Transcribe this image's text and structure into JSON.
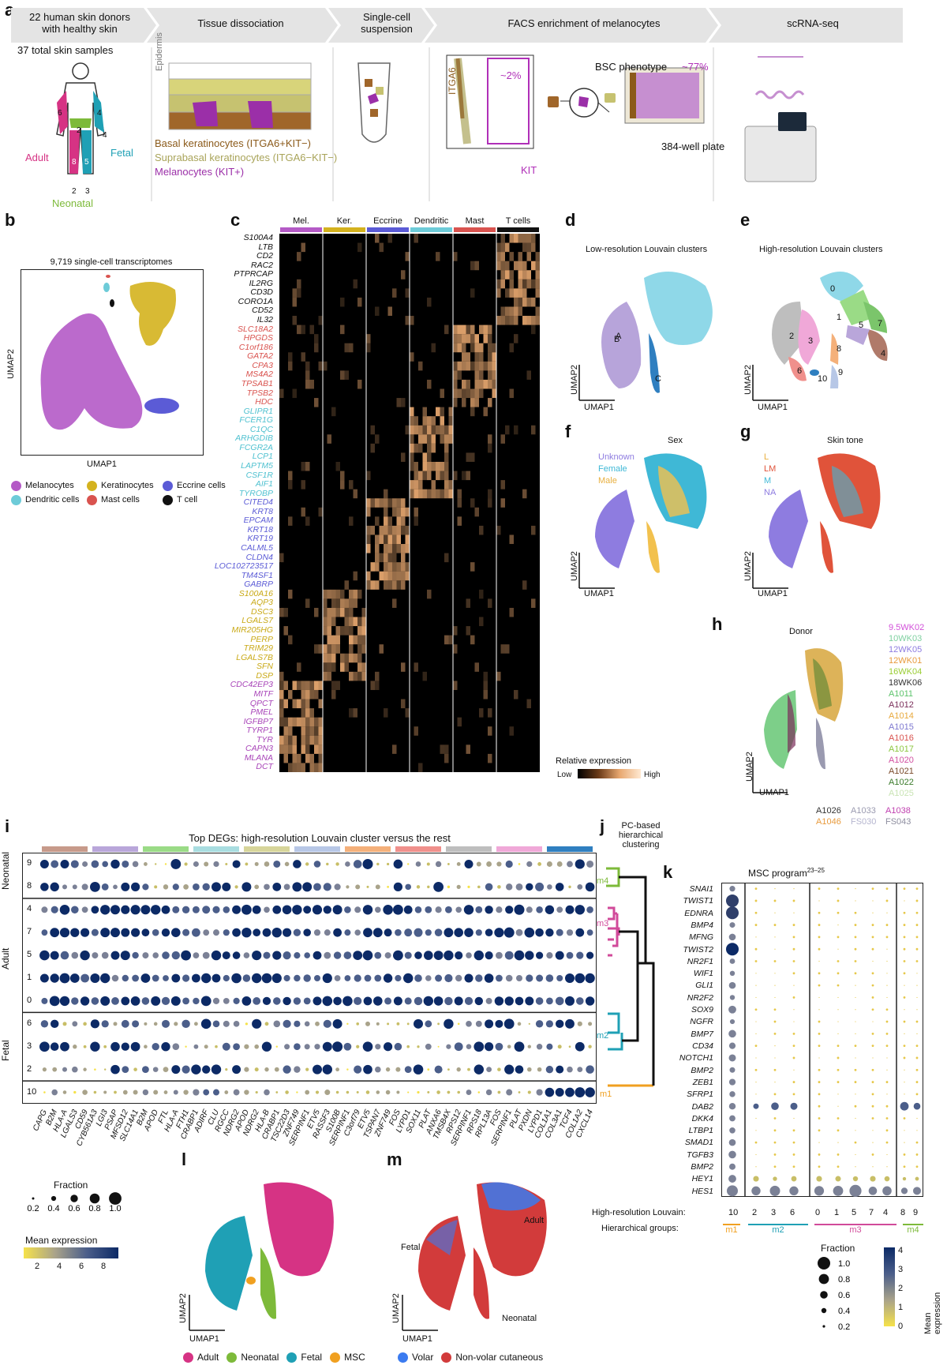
{
  "panels": {
    "a": {
      "label": "a",
      "steps": [
        {
          "title": "22 human skin donors\nwith healthy skin"
        },
        {
          "title": "Tissue dissociation"
        },
        {
          "title": "Single-cell\nsuspension"
        },
        {
          "title": "FACS enrichment of melanocytes"
        },
        {
          "title": "scRNA-seq"
        }
      ],
      "total_samples": "37 total skin samples",
      "body_labels": {
        "adult": "Adult",
        "fetal": "Fetal",
        "neonatal": "Neonatal"
      },
      "body_numbers": [
        "6",
        "4",
        "2",
        "4",
        "8",
        "5",
        "2",
        "3"
      ],
      "epidermis": "Epidermis",
      "cell_types": [
        {
          "label": "Basal keratinocytes (ITGA6+KIT−)",
          "color": "#8B5A1A"
        },
        {
          "label": "Suprabasal keratinocytes (ITGA6−KIT−)",
          "color": "#B5B070"
        },
        {
          "label": "Melanocytes (KIT+)",
          "color": "#9B2FA8"
        }
      ],
      "facs": {
        "ylabel": "ITGA6",
        "xlabel": "KIT",
        "pct_gate": "~2%",
        "bsc": "BSC phenotype",
        "pct_plate": "~77%",
        "plate": "384-well plate"
      }
    },
    "b": {
      "label": "b",
      "title": "9,719  single-cell transcriptomes",
      "xlabel": "UMAP1",
      "ylabel": "UMAP2",
      "legend": [
        {
          "label": "Melanocytes",
          "color": "#B45AC6"
        },
        {
          "label": "Keratinocytes",
          "color": "#D4B21E"
        },
        {
          "label": "Eccrine cells",
          "color": "#5B5BD6"
        },
        {
          "label": "Dendritic cells",
          "color": "#6DCBD8"
        },
        {
          "label": "Mast cells",
          "color": "#D9534F"
        },
        {
          "label": "T cell",
          "color": "#111111"
        }
      ]
    },
    "c": {
      "label": "c",
      "groups": [
        {
          "label": "Mel.",
          "color": "#B45AC6"
        },
        {
          "label": "Ker.",
          "color": "#D4B21E"
        },
        {
          "label": "Eccrine",
          "color": "#5B5BD6"
        },
        {
          "label": "Dendritic",
          "color": "#6DCBD8"
        },
        {
          "label": "Mast",
          "color": "#D9534F"
        },
        {
          "label": "T cells",
          "color": "#111111"
        }
      ],
      "genes": [
        {
          "name": "S100A4",
          "color": "#111111"
        },
        {
          "name": "LTB",
          "color": "#111111"
        },
        {
          "name": "CD2",
          "color": "#111111"
        },
        {
          "name": "RAC2",
          "color": "#111111"
        },
        {
          "name": "PTPRCAP",
          "color": "#111111"
        },
        {
          "name": "IL2RG",
          "color": "#111111"
        },
        {
          "name": "CD3D",
          "color": "#111111"
        },
        {
          "name": "CORO1A",
          "color": "#111111"
        },
        {
          "name": "CD52",
          "color": "#111111"
        },
        {
          "name": "IL32",
          "color": "#111111"
        },
        {
          "name": "SLC18A2",
          "color": "#D9534F"
        },
        {
          "name": "HPGDS",
          "color": "#D9534F"
        },
        {
          "name": "C1orf186",
          "color": "#D9534F"
        },
        {
          "name": "GATA2",
          "color": "#D9534F"
        },
        {
          "name": "CPA3",
          "color": "#D9534F"
        },
        {
          "name": "MS4A2",
          "color": "#D9534F"
        },
        {
          "name": "TPSAB1",
          "color": "#D9534F"
        },
        {
          "name": "TPSB2",
          "color": "#D9534F"
        },
        {
          "name": "HDC",
          "color": "#D9534F"
        },
        {
          "name": "GLIPR1",
          "color": "#4FC1D0"
        },
        {
          "name": "FCER1G",
          "color": "#4FC1D0"
        },
        {
          "name": "C1QC",
          "color": "#4FC1D0"
        },
        {
          "name": "ARHGDIB",
          "color": "#4FC1D0"
        },
        {
          "name": "FCGR2A",
          "color": "#4FC1D0"
        },
        {
          "name": "LCP1",
          "color": "#4FC1D0"
        },
        {
          "name": "LAPTM5",
          "color": "#4FC1D0"
        },
        {
          "name": "CSF1R",
          "color": "#4FC1D0"
        },
        {
          "name": "AIF1",
          "color": "#4FC1D0"
        },
        {
          "name": "TYROBP",
          "color": "#4FC1D0"
        },
        {
          "name": "CITED4",
          "color": "#5B5BD6"
        },
        {
          "name": "KRT8",
          "color": "#5B5BD6"
        },
        {
          "name": "EPCAM",
          "color": "#5B5BD6"
        },
        {
          "name": "KRT18",
          "color": "#5B5BD6"
        },
        {
          "name": "KRT19",
          "color": "#5B5BD6"
        },
        {
          "name": "CALML5",
          "color": "#5B5BD6"
        },
        {
          "name": "CLDN4",
          "color": "#5B5BD6"
        },
        {
          "name": "LOC102723517",
          "color": "#5B5BD6"
        },
        {
          "name": "TM4SF1",
          "color": "#5B5BD6"
        },
        {
          "name": "GABRP",
          "color": "#5B5BD6"
        },
        {
          "name": "S100A16",
          "color": "#C9A916"
        },
        {
          "name": "AQP3",
          "color": "#C9A916"
        },
        {
          "name": "DSC3",
          "color": "#C9A916"
        },
        {
          "name": "LGALS7",
          "color": "#C9A916"
        },
        {
          "name": "MIR205HG",
          "color": "#C9A916"
        },
        {
          "name": "PERP",
          "color": "#C9A916"
        },
        {
          "name": "TRIM29",
          "color": "#C9A916"
        },
        {
          "name": "LGALS7B",
          "color": "#C9A916"
        },
        {
          "name": "SFN",
          "color": "#C9A916"
        },
        {
          "name": "DSP",
          "color": "#C9A916"
        },
        {
          "name": "CDC42EP3",
          "color": "#A844B8"
        },
        {
          "name": "MITF",
          "color": "#A844B8"
        },
        {
          "name": "QPCT",
          "color": "#A844B8"
        },
        {
          "name": "PMEL",
          "color": "#A844B8"
        },
        {
          "name": "IGFBP7",
          "color": "#A844B8"
        },
        {
          "name": "TYRP1",
          "color": "#A844B8"
        },
        {
          "name": "TYR",
          "color": "#A844B8"
        },
        {
          "name": "CAPN3",
          "color": "#A844B8"
        },
        {
          "name": "MLANA",
          "color": "#A844B8"
        },
        {
          "name": "DCT",
          "color": "#A844B8"
        }
      ],
      "colorbar_title": "Relative expression",
      "colorbar_low": "Low",
      "colorbar_high": "High"
    },
    "d": {
      "label": "d",
      "title": "Low-resolution Louvain clusters",
      "clusters": [
        "A",
        "B",
        "C"
      ],
      "xlabel": "UMAP1",
      "ylabel": "UMAP2"
    },
    "e": {
      "label": "e",
      "title": "High-resolution Louvain clusters",
      "clusters": [
        "0",
        "1",
        "2",
        "3",
        "4",
        "5",
        "6",
        "7",
        "8",
        "9",
        "10"
      ],
      "xlabel": "UMAP1",
      "ylabel": "UMAP2"
    },
    "f": {
      "label": "f",
      "title": "Sex",
      "legend": [
        {
          "label": "Unknown",
          "color": "#8E7CE0"
        },
        {
          "label": "Female",
          "color": "#3FB8D6"
        },
        {
          "label": "Male",
          "color": "#F2C14E"
        }
      ],
      "xlabel": "UMAP1",
      "ylabel": "UMAP2"
    },
    "g": {
      "label": "g",
      "title": "Skin tone",
      "legend": [
        {
          "label": "L",
          "color": "#F2C14E"
        },
        {
          "label": "LM",
          "color": "#E0533A"
        },
        {
          "label": "M",
          "color": "#3FB8D6"
        },
        {
          "label": "NA",
          "color": "#8E7CE0"
        }
      ],
      "xlabel": "UMAP1",
      "ylabel": "UMAP2"
    },
    "h": {
      "label": "h",
      "title": "Donor",
      "xlabel": "UMAP1",
      "ylabel": "UMAP2",
      "donors": [
        {
          "label": "9.5WK02",
          "color": "#D24FD9"
        },
        {
          "label": "10WK03",
          "color": "#7FD0A0"
        },
        {
          "label": "12WK05",
          "color": "#8E7CE0"
        },
        {
          "label": "12WK01",
          "color": "#E89A3C"
        },
        {
          "label": "16WK04",
          "color": "#9ACD32"
        },
        {
          "label": "18WK06",
          "color": "#333333"
        },
        {
          "label": "A1011",
          "color": "#5CC36B"
        },
        {
          "label": "A1012",
          "color": "#7A2E5A"
        },
        {
          "label": "A1014",
          "color": "#E8A93C"
        },
        {
          "label": "A1015",
          "color": "#7E78D0"
        },
        {
          "label": "A1016",
          "color": "#D9534F"
        },
        {
          "label": "A1017",
          "color": "#8CC63F"
        },
        {
          "label": "A1020",
          "color": "#D24FA0"
        },
        {
          "label": "A1021",
          "color": "#7A4A2A"
        },
        {
          "label": "A1022",
          "color": "#3A7A2A"
        },
        {
          "label": "A1025",
          "color": "#C9E4B4"
        },
        {
          "label": "A1026",
          "color": "#333333"
        },
        {
          "label": "A1033",
          "color": "#9A9AB0"
        },
        {
          "label": "A1038",
          "color": "#C040B0"
        },
        {
          "label": "A1046",
          "color": "#E89A3C"
        },
        {
          "label": "FS030",
          "color": "#B5B5CF"
        },
        {
          "label": "FS043",
          "color": "#8E8EA0"
        }
      ]
    },
    "i": {
      "label": "i",
      "title": "Top DEGs: high-resolution Louvain cluster versus the rest",
      "row_groups": [
        {
          "label": "Neonatal",
          "rows": [
            "9",
            "8"
          ]
        },
        {
          "label": "Adult",
          "rows": [
            "4",
            "7",
            "5",
            "1",
            "0"
          ]
        },
        {
          "label": "Fetal",
          "rows": [
            "6",
            "3",
            "2"
          ]
        },
        {
          "label": "",
          "rows": [
            "10"
          ]
        }
      ],
      "genes": [
        "CAPG",
        "B2M",
        "HLA-A",
        "LGALS3",
        "CD59",
        "CYB561A3",
        "LGI3",
        "PSAP",
        "MFSD12",
        "SLC14A1",
        "B2M",
        "APOD",
        "FTL",
        "HLA-A",
        "FTH1",
        "CRABP1",
        "ADIRF",
        "CLU",
        "RGCC",
        "NDRG2",
        "APOD",
        "NDRG2",
        "HLA-B",
        "CRABP1",
        "TSC22D3",
        "ZNF749",
        "SERPINF1",
        "ETV5",
        "RASSF3",
        "S100B",
        "SERPINF1",
        "C3orf79",
        "ETV5",
        "TSPAN7",
        "ZNF749",
        "FOS",
        "LYPD1",
        "SOX11",
        "PLAT",
        "ANXA6",
        "TMSB4X",
        "RPS12",
        "SERPINF1",
        "RPS18",
        "RPL13A",
        "FOS",
        "SERPINF1",
        "PLAT",
        "PXDN",
        "LYPD1",
        "COL1A1",
        "COL3A1",
        "TCF4",
        "COL1A2",
        "CXCL14"
      ],
      "gene_group_colors": [
        "#C79A8A",
        "#B9A6DA",
        "#9ADB86",
        "#A8DDE0",
        "#D7D59A",
        "#B7C7E6",
        "#F4B07A",
        "#F0908C",
        "#BEBEBE",
        "#F0A8D8",
        "#2F7FC0"
      ],
      "size_legend_title": "Fraction",
      "size_legend": [
        "0.2",
        "0.4",
        "0.6",
        "0.8",
        "1.0"
      ],
      "color_legend_title": "Mean expression",
      "color_legend_ticks": [
        "2",
        "4",
        "6",
        "8"
      ]
    },
    "j": {
      "label": "j",
      "title": "PC-based\nhierarchical\nclustering",
      "groups": [
        {
          "label": "m4",
          "color": "#7DBA3A"
        },
        {
          "label": "m3",
          "color": "#D14A9A"
        },
        {
          "label": "m2",
          "color": "#1FA0B5"
        },
        {
          "label": "m1",
          "color": "#F0A020"
        }
      ]
    },
    "k": {
      "label": "k",
      "title": "MSC program",
      "title_sup": "23–25",
      "genes": [
        "SNAI1",
        "TWIST1",
        "EDNRA",
        "BMP4",
        "MFNG",
        "TWIST2",
        "NR2F1",
        "WIF1",
        "GLI1",
        "NR2F2",
        "SOX9",
        "NGFR",
        "BMP7",
        "CD34",
        "NOTCH1",
        "BMP2",
        "ZEB1",
        "SFRP1",
        "DAB2",
        "DKK4",
        "LTBP1",
        "SMAD1",
        "TGFB3",
        "BMP2",
        "HEY1",
        "HES1"
      ],
      "columns": [
        "10",
        "2",
        "3",
        "6",
        "0",
        "1",
        "5",
        "7",
        "4",
        "8",
        "9"
      ],
      "row_label_louvain": "High-resolution Louvain:",
      "row_label_hier": "Hierarchical groups:",
      "hier_groups": [
        {
          "label": "m1",
          "color": "#F0A020"
        },
        {
          "label": "m2",
          "color": "#1FA0B5"
        },
        {
          "label": "m3",
          "color": "#D14A9A"
        },
        {
          "label": "m4",
          "color": "#7DBA3A"
        }
      ],
      "size_legend_title": "Fraction",
      "size_legend": [
        "1.0",
        "0.8",
        "0.6",
        "0.4",
        "0.2"
      ],
      "color_legend_title": "Mean expression",
      "color_legend_ticks": [
        "4",
        "3",
        "2",
        "1",
        "0"
      ]
    },
    "l": {
      "label": "l",
      "xlabel": "UMAP1",
      "ylabel": "UMAP2",
      "legend": [
        {
          "label": "Adult",
          "color": "#D63384"
        },
        {
          "label": "Neonatal",
          "color": "#7DBA3A"
        },
        {
          "label": "Fetal",
          "color": "#1FA0B5"
        },
        {
          "label": "MSC",
          "color": "#F0A020"
        }
      ]
    },
    "m": {
      "label": "m",
      "xlabel": "UMAP1",
      "ylabel": "UMAP2",
      "annotations": [
        "Adult",
        "Fetal",
        "Neonatal"
      ],
      "legend": [
        {
          "label": "Volar",
          "color": "#3B7BF0"
        },
        {
          "label": "Non-volar cutaneous",
          "color": "#D23B3B"
        }
      ]
    }
  }
}
